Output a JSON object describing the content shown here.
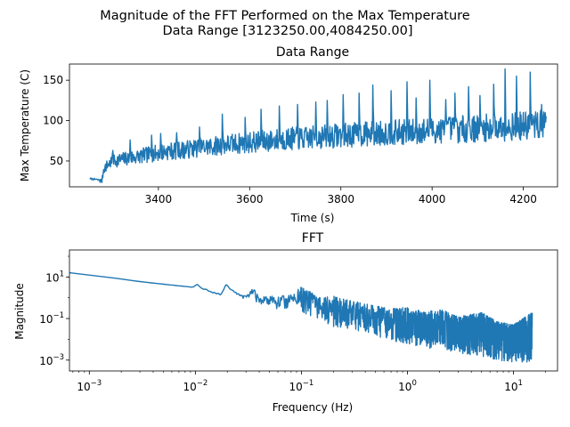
{
  "figure": {
    "title_line1": "Magnitude of the FFT Performed on the Max Temperature",
    "title_line2": "Data Range [3123250.00,4084250.00]"
  },
  "chart_data": [
    {
      "type": "line",
      "title": "Data Range",
      "xlabel": "Time (s)",
      "ylabel": "Max Temperature (C)",
      "xlim": [
        3205,
        4275
      ],
      "ylim": [
        18,
        170
      ],
      "x_ticks": [
        3400,
        3600,
        3800,
        4000,
        4200
      ],
      "y_ticks": [
        50,
        100,
        150
      ],
      "color": "#1f77b4",
      "series": [
        {
          "x": [
            3250,
            3265,
            3272,
            3276,
            3280,
            3290,
            3300,
            3320,
            3340,
            3360,
            3380,
            3400,
            3420,
            3440,
            3460,
            3480,
            3500,
            3520,
            3540,
            3560,
            3580,
            3600,
            3620,
            3640,
            3660,
            3680,
            3700,
            3720,
            3740,
            3760,
            3780,
            3800,
            3820,
            3840,
            3860,
            3880,
            3900,
            3920,
            3940,
            3960,
            3980,
            4000,
            4020,
            4040,
            4060,
            4080,
            4100,
            4120,
            4140,
            4160,
            4180,
            4200,
            4220,
            4240,
            4250
          ],
          "y_base": [
            28,
            27,
            26,
            25,
            40,
            46,
            50,
            52,
            54,
            56,
            58,
            60,
            62,
            63,
            64,
            66,
            67,
            68,
            70,
            71,
            72,
            73,
            74,
            75,
            76,
            77,
            78,
            78,
            79,
            80,
            81,
            82,
            82,
            83,
            84,
            84,
            85,
            85,
            86,
            86,
            87,
            88,
            88,
            89,
            89,
            90,
            90,
            91,
            91,
            92,
            93,
            93,
            94,
            95,
            96
          ],
          "spikes": [
            {
              "x": 3300,
              "y": 63
            },
            {
              "x": 3338,
              "y": 76
            },
            {
              "x": 3385,
              "y": 82
            },
            {
              "x": 3405,
              "y": 84
            },
            {
              "x": 3440,
              "y": 85
            },
            {
              "x": 3490,
              "y": 92
            },
            {
              "x": 3540,
              "y": 108
            },
            {
              "x": 3590,
              "y": 104
            },
            {
              "x": 3625,
              "y": 114
            },
            {
              "x": 3665,
              "y": 118
            },
            {
              "x": 3705,
              "y": 120
            },
            {
              "x": 3745,
              "y": 123
            },
            {
              "x": 3770,
              "y": 125
            },
            {
              "x": 3805,
              "y": 132
            },
            {
              "x": 3840,
              "y": 134
            },
            {
              "x": 3870,
              "y": 144
            },
            {
              "x": 3910,
              "y": 137
            },
            {
              "x": 3945,
              "y": 148
            },
            {
              "x": 3965,
              "y": 128
            },
            {
              "x": 3995,
              "y": 150
            },
            {
              "x": 4030,
              "y": 126
            },
            {
              "x": 4050,
              "y": 134
            },
            {
              "x": 4080,
              "y": 142
            },
            {
              "x": 4105,
              "y": 131
            },
            {
              "x": 4135,
              "y": 145
            },
            {
              "x": 4160,
              "y": 164
            },
            {
              "x": 4185,
              "y": 155
            },
            {
              "x": 4215,
              "y": 160
            },
            {
              "x": 4240,
              "y": 120
            }
          ]
        }
      ]
    },
    {
      "type": "line",
      "title": "FFT",
      "xlabel": "Frequency (Hz)",
      "ylabel": "Magnitude",
      "xscale": "log",
      "yscale": "log",
      "xlim": [
        0.00065,
        26
      ],
      "ylim": [
        0.0003,
        200
      ],
      "x_ticks": [
        {
          "value": 0.001,
          "base": "10",
          "exp": "−3"
        },
        {
          "value": 0.01,
          "base": "10",
          "exp": "−2"
        },
        {
          "value": 0.1,
          "base": "10",
          "exp": "−1"
        },
        {
          "value": 1,
          "base": "10",
          "exp": "0"
        },
        {
          "value": 10,
          "base": "10",
          "exp": "1"
        }
      ],
      "y_ticks": [
        {
          "value": 0.001,
          "base": "10",
          "exp": "−3"
        },
        {
          "value": 0.1,
          "base": "10",
          "exp": "−1"
        },
        {
          "value": 10,
          "base": "10",
          "exp": "1"
        }
      ],
      "color": "#1f77b4",
      "series": [
        {
          "x": [
            0.00065,
            0.00104,
            0.0015,
            0.002,
            0.003,
            0.005,
            0.0095,
            0.0104,
            0.0115,
            0.013,
            0.015,
            0.0175,
            0.0195,
            0.021,
            0.025,
            0.03,
            0.035,
            0.04,
            0.05,
            0.06,
            0.08,
            0.1,
            0.15,
            0.2,
            0.3,
            0.5,
            0.7,
            1,
            1.5,
            2,
            3,
            5,
            7,
            10,
            15
          ],
          "env_hi": [
            16,
            15,
            10,
            8,
            6,
            4.5,
            3.2,
            4.5,
            2.8,
            2.5,
            1.8,
            1.5,
            4.5,
            3,
            1.6,
            1.2,
            3.2,
            1,
            1.3,
            1.1,
            1.5,
            3.5,
            1,
            1.2,
            0.7,
            0.4,
            0.3,
            0.35,
            0.2,
            0.3,
            0.12,
            0.2,
            0.07,
            0.05,
            0.2
          ],
          "env_lo": [
            16,
            15,
            10,
            8,
            6,
            4.5,
            3.2,
            4.5,
            2.5,
            2.2,
            1.6,
            1.3,
            4.5,
            2.5,
            1.3,
            0.8,
            0.8,
            0.5,
            0.45,
            0.22,
            0.3,
            0.2,
            0.09,
            0.04,
            0.03,
            0.015,
            0.008,
            0.006,
            0.004,
            0.003,
            0.0022,
            0.0015,
            0.001,
            0.0008,
            0.0008
          ]
        }
      ]
    }
  ]
}
